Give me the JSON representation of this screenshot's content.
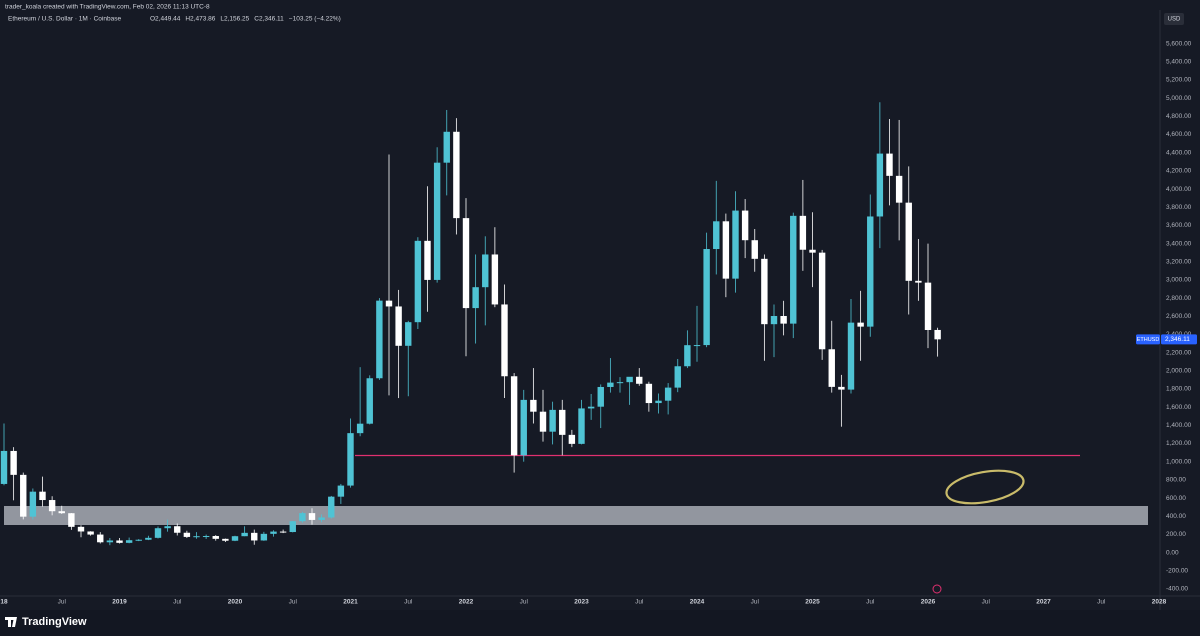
{
  "chart_data": {
    "type": "candlestick",
    "attribution": "trader_koala created with TradingView.com, Feb 02, 2026 11:13 UTC-8",
    "title": "Ethereum / U.S. Dollar · 1M · Coinbase",
    "header_ohlc": [
      "O2,449.44",
      "H2,473.86",
      "L2,156.25",
      "C2,346.11",
      "−103.25 (−4.22%)"
    ],
    "currency": "USD",
    "symbol": "ETHUSD",
    "last_price_label": "2,346.11",
    "brand": "TradingView",
    "up_color": "#4fc3d4",
    "down_color": "#ffffff",
    "grid": false,
    "ylim": [
      -522,
      5970
    ],
    "yticks": [
      {
        "value": -400,
        "label": "-400.00"
      },
      {
        "value": -200,
        "label": "-200.00"
      },
      {
        "value": 0,
        "label": "0.00"
      },
      {
        "value": 200,
        "label": "200.00"
      },
      {
        "value": 400,
        "label": "400.00"
      },
      {
        "value": 600,
        "label": "600.00"
      },
      {
        "value": 800,
        "label": "800.00"
      },
      {
        "value": 1000,
        "label": "1,000.00"
      },
      {
        "value": 1200,
        "label": "1,200.00"
      },
      {
        "value": 1400,
        "label": "1,400.00"
      },
      {
        "value": 1600,
        "label": "1,600.00"
      },
      {
        "value": 1800,
        "label": "1,800.00"
      },
      {
        "value": 2000,
        "label": "2,000.00"
      },
      {
        "value": 2200,
        "label": "2,200.00"
      },
      {
        "value": 2400,
        "label": "2,400.00"
      },
      {
        "value": 2600,
        "label": "2,600.00"
      },
      {
        "value": 2800,
        "label": "2,800.00"
      },
      {
        "value": 3000,
        "label": "3,000.00"
      },
      {
        "value": 3200,
        "label": "3,200.00"
      },
      {
        "value": 3400,
        "label": "3,400.00"
      },
      {
        "value": 3600,
        "label": "3,600.00"
      },
      {
        "value": 3800,
        "label": "3,800.00"
      },
      {
        "value": 4000,
        "label": "4,000.00"
      },
      {
        "value": 4200,
        "label": "4,200.00"
      },
      {
        "value": 4400,
        "label": "4,400.00"
      },
      {
        "value": 4600,
        "label": "4,600.00"
      },
      {
        "value": 4800,
        "label": "4,800.00"
      },
      {
        "value": 5000,
        "label": "5,000.00"
      },
      {
        "value": 5200,
        "label": "5,200.00"
      },
      {
        "value": 5400,
        "label": "5,400.00"
      },
      {
        "value": 5600,
        "label": "5,600.00"
      }
    ],
    "xticks": [
      {
        "value": "2018-01",
        "label": "18"
      },
      {
        "value": "2018-07",
        "label": "Jul"
      },
      {
        "value": "2019-01",
        "label": "2019"
      },
      {
        "value": "2019-07",
        "label": "Jul"
      },
      {
        "value": "2020-01",
        "label": "2020"
      },
      {
        "value": "2020-07",
        "label": "Jul"
      },
      {
        "value": "2021-01",
        "label": "2021"
      },
      {
        "value": "2021-07",
        "label": "Jul"
      },
      {
        "value": "2022-01",
        "label": "2022"
      },
      {
        "value": "2022-07",
        "label": "Jul"
      },
      {
        "value": "2023-01",
        "label": "2023"
      },
      {
        "value": "2023-07",
        "label": "Jul"
      },
      {
        "value": "2024-01",
        "label": "2024"
      },
      {
        "value": "2024-07",
        "label": "Jul"
      },
      {
        "value": "2025-01",
        "label": "2025"
      },
      {
        "value": "2025-07",
        "label": "Jul"
      },
      {
        "value": "2026-01",
        "label": "2026"
      },
      {
        "value": "2026-07",
        "label": "Jul"
      },
      {
        "value": "2027-01",
        "label": "2027"
      },
      {
        "value": "2027-07",
        "label": "Jul"
      },
      {
        "value": "2028-01",
        "label": "2028"
      }
    ],
    "x": [
      "2018-01",
      "2018-02",
      "2018-03",
      "2018-04",
      "2018-05",
      "2018-06",
      "2018-07",
      "2018-08",
      "2018-09",
      "2018-10",
      "2018-11",
      "2018-12",
      "2019-01",
      "2019-02",
      "2019-03",
      "2019-04",
      "2019-05",
      "2019-06",
      "2019-07",
      "2019-08",
      "2019-09",
      "2019-10",
      "2019-11",
      "2019-12",
      "2020-01",
      "2020-02",
      "2020-03",
      "2020-04",
      "2020-05",
      "2020-06",
      "2020-07",
      "2020-08",
      "2020-09",
      "2020-10",
      "2020-11",
      "2020-12",
      "2021-01",
      "2021-02",
      "2021-03",
      "2021-04",
      "2021-05",
      "2021-06",
      "2021-07",
      "2021-08",
      "2021-09",
      "2021-10",
      "2021-11",
      "2021-12",
      "2022-01",
      "2022-02",
      "2022-03",
      "2022-04",
      "2022-05",
      "2022-06",
      "2022-07",
      "2022-08",
      "2022-09",
      "2022-10",
      "2022-11",
      "2022-12",
      "2023-01",
      "2023-02",
      "2023-03",
      "2023-04",
      "2023-05",
      "2023-06",
      "2023-07",
      "2023-08",
      "2023-09",
      "2023-10",
      "2023-11",
      "2023-12",
      "2024-01",
      "2024-02",
      "2024-03",
      "2024-04",
      "2024-05",
      "2024-06",
      "2024-07",
      "2024-08",
      "2024-09",
      "2024-10",
      "2024-11",
      "2024-12",
      "2025-01",
      "2025-02",
      "2025-03",
      "2025-04",
      "2025-05",
      "2025-06",
      "2025-07",
      "2025-08",
      "2025-09",
      "2025-10",
      "2025-11",
      "2025-12",
      "2026-01",
      "2026-02"
    ],
    "open": [
      755,
      1118,
      855,
      395,
      670,
      578,
      455,
      433,
      283,
      232,
      198,
      113,
      133,
      107,
      136,
      141,
      162,
      268,
      290,
      218,
      172,
      180,
      182,
      151,
      130,
      180,
      217,
      133,
      206,
      231,
      226,
      345,
      434,
      359,
      386,
      615,
      737,
      1314,
      1418,
      1918,
      2772,
      2708,
      2275,
      2535,
      3430,
      3000,
      4290,
      4630,
      3680,
      2690,
      2920,
      3280,
      2730,
      1940,
      1070,
      1680,
      1550,
      1330,
      1570,
      1295,
      1196,
      1586,
      1605,
      1822,
      1870,
      1875,
      1934,
      1857,
      1645,
      1671,
      1815,
      2050,
      2282,
      2283,
      3340,
      3645,
      3014,
      3763,
      3437,
      3232,
      2513,
      2603,
      2519,
      3705,
      3332,
      3300,
      2237,
      1823,
      1793,
      2530,
      2486,
      3698,
      4390,
      4145,
      3850,
      2990,
      2970,
      2449.44
    ],
    "high": [
      1420,
      1160,
      880,
      705,
      835,
      620,
      515,
      435,
      300,
      235,
      225,
      160,
      160,
      165,
      148,
      185,
      287,
      362,
      320,
      240,
      225,
      198,
      192,
      154,
      185,
      289,
      253,
      228,
      245,
      253,
      348,
      448,
      488,
      420,
      623,
      755,
      1475,
      2040,
      1950,
      2800,
      4380,
      2890,
      2550,
      3470,
      4030,
      4460,
      4870,
      4780,
      3900,
      3280,
      3480,
      3580,
      2950,
      1975,
      1790,
      2030,
      1790,
      1660,
      1680,
      1350,
      1680,
      1745,
      1850,
      2140,
      1930,
      1930,
      2030,
      1880,
      1750,
      1865,
      2130,
      2445,
      2715,
      3520,
      4090,
      3730,
      3975,
      3890,
      3560,
      3280,
      2730,
      2770,
      3740,
      4100,
      3745,
      3330,
      2550,
      1955,
      2790,
      2880,
      3940,
      4955,
      4770,
      4760,
      4250,
      3450,
      3400,
      2473.86
    ],
    "low": [
      740,
      575,
      365,
      365,
      505,
      410,
      425,
      250,
      168,
      186,
      100,
      81,
      100,
      102,
      126,
      137,
      155,
      230,
      188,
      160,
      152,
      150,
      131,
      116,
      126,
      180,
      86,
      129,
      176,
      214,
      222,
      330,
      308,
      335,
      373,
      535,
      714,
      1280,
      1410,
      1900,
      1730,
      1700,
      1720,
      2460,
      2650,
      2970,
      3930,
      3500,
      2160,
      2300,
      2500,
      2700,
      1700,
      880,
      1000,
      1420,
      1220,
      1190,
      1070,
      1160,
      1190,
      1460,
      1370,
      1760,
      1760,
      1625,
      1835,
      1550,
      1530,
      1520,
      1765,
      2030,
      2100,
      2260,
      3060,
      2810,
      2860,
      3240,
      3090,
      2110,
      2150,
      2390,
      2360,
      3100,
      2920,
      2120,
      1760,
      1385,
      1750,
      2110,
      2375,
      3350,
      3820,
      3435,
      2620,
      2770,
      2250,
      2156.25
    ],
    "close": [
      1118,
      855,
      395,
      670,
      578,
      455,
      433,
      283,
      232,
      198,
      113,
      133,
      107,
      136,
      141,
      162,
      268,
      290,
      218,
      172,
      180,
      182,
      151,
      130,
      180,
      217,
      133,
      206,
      231,
      226,
      345,
      434,
      359,
      386,
      615,
      737,
      1314,
      1418,
      1918,
      2772,
      2708,
      2275,
      2535,
      3430,
      3000,
      4290,
      4630,
      3680,
      2690,
      2920,
      3280,
      2730,
      1940,
      1070,
      1680,
      1550,
      1330,
      1570,
      1295,
      1196,
      1586,
      1605,
      1822,
      1870,
      1875,
      1934,
      1857,
      1645,
      1671,
      1815,
      2050,
      2282,
      2283,
      3340,
      3645,
      3014,
      3763,
      3437,
      3232,
      2513,
      2603,
      2519,
      3705,
      3332,
      3300,
      2237,
      1823,
      1793,
      2530,
      2486,
      3698,
      4390,
      4145,
      3850,
      2990,
      2970,
      2449,
      2346.11
    ]
  }
}
